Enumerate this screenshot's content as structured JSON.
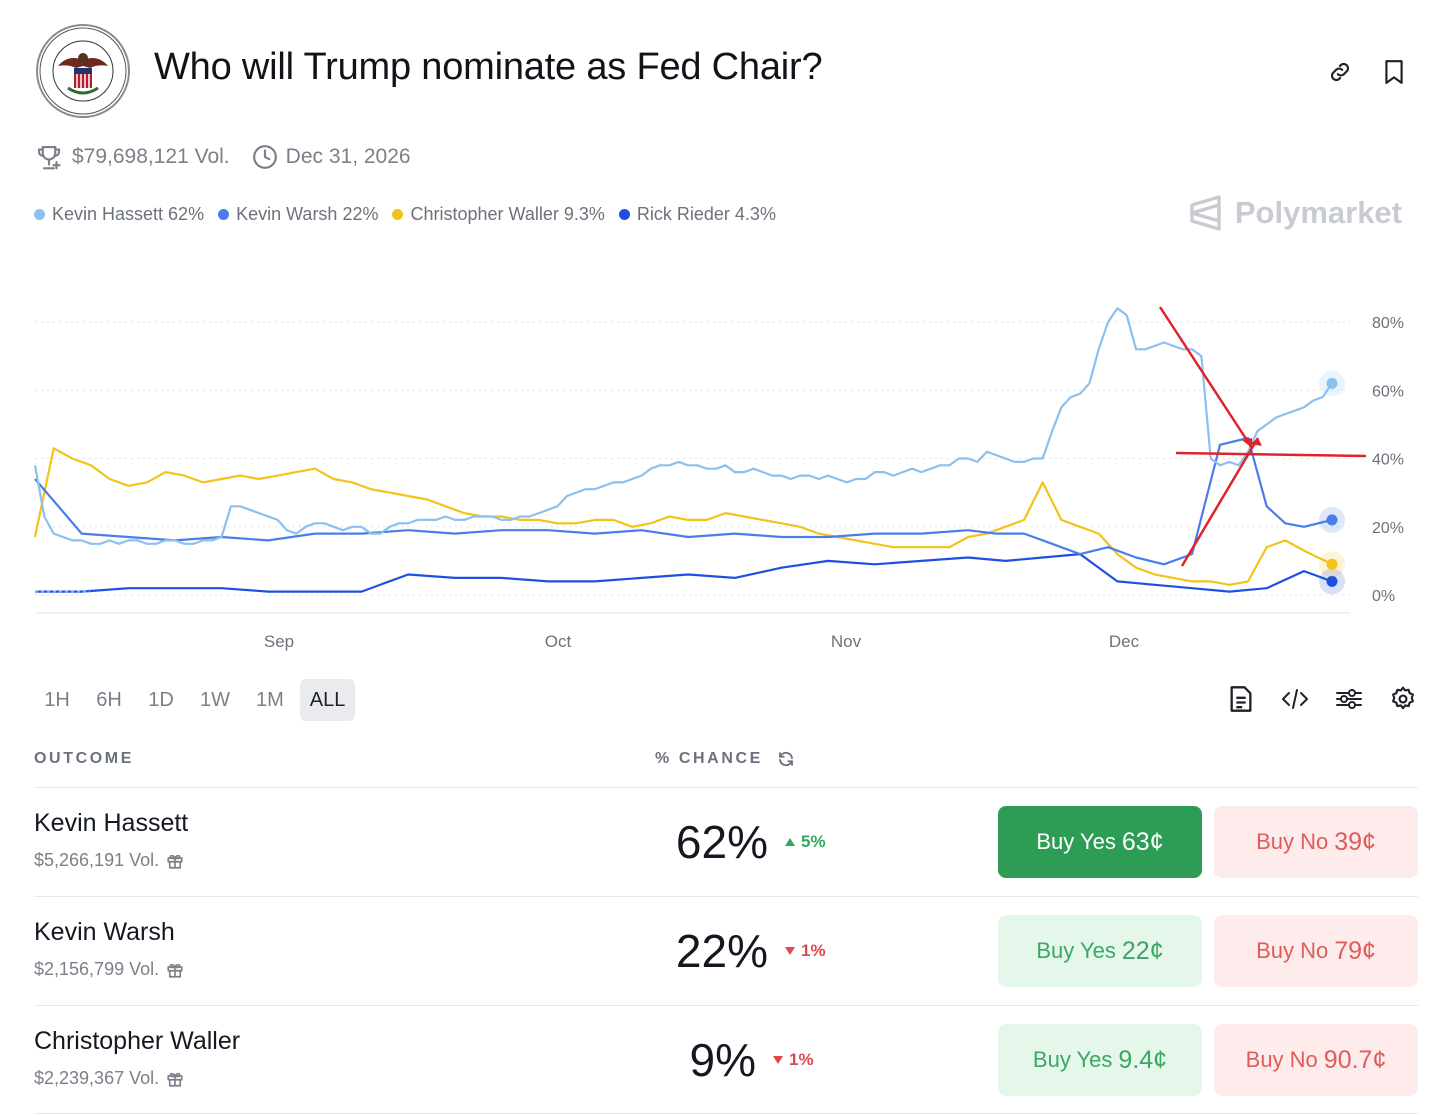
{
  "header": {
    "title": "Who will Trump nominate as Fed Chair?",
    "logo_ring_text": "BOARD OF GOVERNORS OF THE FEDERAL RESERVE SYSTEM",
    "volume": "$79,698,121 Vol.",
    "end_date": "Dec 31, 2026",
    "brand": "Polymarket"
  },
  "legend": [
    {
      "label": "Kevin Hassett 62%",
      "color": "#8cc0ef"
    },
    {
      "label": "Kevin Warsh 22%",
      "color": "#4a7de8"
    },
    {
      "label": "Christopher Waller 9.3%",
      "color": "#f2c318"
    },
    {
      "label": "Rick Rieder 4.3%",
      "color": "#1f4fe0"
    }
  ],
  "chart_data": {
    "type": "line",
    "x_ticks": [
      "Sep",
      "Oct",
      "Nov",
      "Dec"
    ],
    "y_ticks": [
      "80%",
      "60%",
      "40%",
      "20%",
      "0%"
    ],
    "ylim": [
      0,
      80
    ],
    "grid": true,
    "series": [
      {
        "name": "Kevin Hassett",
        "color": "#8cc0ef",
        "x": [
          0,
          1,
          2,
          3,
          4,
          5,
          6,
          7,
          8,
          9,
          10,
          11,
          12,
          13,
          14,
          15,
          16,
          17,
          18,
          19,
          20,
          21,
          22,
          23,
          24,
          25,
          26,
          27,
          28,
          29,
          30,
          31,
          32,
          33,
          34,
          35,
          36,
          37,
          38,
          39,
          40,
          41,
          42,
          43,
          44,
          45,
          46,
          47,
          48,
          49,
          50,
          51,
          52,
          53,
          54,
          55,
          56,
          57,
          58,
          59,
          60,
          61,
          62,
          63,
          64,
          65,
          66,
          67,
          68,
          69,
          70,
          71,
          72,
          73,
          74,
          75,
          76,
          77,
          78,
          79,
          80,
          81,
          82,
          83,
          84,
          85,
          86,
          87,
          88,
          89,
          90,
          91,
          92,
          93,
          94,
          95,
          96,
          97,
          98,
          99,
          100,
          101,
          102,
          103,
          104,
          105,
          106,
          107,
          108,
          109,
          110,
          111,
          112,
          113,
          114,
          115,
          116,
          117,
          118,
          119,
          120,
          121,
          122,
          123,
          124,
          125,
          126,
          127,
          128,
          129,
          130,
          131,
          132,
          133,
          134,
          135,
          136,
          137,
          138,
          139
        ],
        "y": [
          38,
          23,
          18,
          17,
          16,
          16,
          15,
          15,
          16,
          15,
          16,
          16,
          15,
          15,
          16,
          16,
          15,
          15,
          16,
          16,
          17,
          26,
          26,
          25,
          24,
          23,
          22,
          19,
          18,
          20,
          21,
          21,
          20,
          19,
          20,
          20,
          18,
          18,
          20,
          21,
          21,
          22,
          22,
          22,
          23,
          22,
          22,
          23,
          23,
          23,
          22,
          22,
          23,
          23,
          24,
          25,
          26,
          29,
          30,
          31,
          31,
          32,
          33,
          33,
          34,
          35,
          37,
          38,
          38,
          39,
          38,
          38,
          37,
          37,
          38,
          36,
          36,
          37,
          36,
          35,
          35,
          34,
          35,
          35,
          34,
          35,
          34,
          33,
          34,
          34,
          36,
          36,
          35,
          36,
          37,
          36,
          37,
          38,
          38,
          40,
          40,
          39,
          42,
          41,
          40,
          39,
          39,
          40,
          40,
          48,
          55,
          58,
          59,
          62,
          72,
          80,
          84,
          82,
          72,
          72,
          73,
          74,
          73,
          72,
          72,
          70,
          40,
          38,
          39,
          38,
          42,
          48,
          50,
          52,
          53,
          54,
          55,
          57,
          58,
          62
        ]
      },
      {
        "name": "Kevin Warsh",
        "color": "#4a7de8",
        "x": [
          0,
          5,
          10,
          15,
          20,
          25,
          30,
          35,
          40,
          45,
          50,
          55,
          60,
          65,
          70,
          75,
          80,
          85,
          90,
          95,
          100,
          103,
          106,
          109,
          112,
          115,
          118,
          121,
          124,
          127,
          130,
          132,
          134,
          136,
          139
        ],
        "y": [
          34,
          18,
          17,
          16,
          17,
          16,
          18,
          18,
          19,
          18,
          19,
          19,
          18,
          19,
          17,
          18,
          17,
          17,
          18,
          18,
          19,
          18,
          18,
          15,
          12,
          14,
          11,
          9,
          12,
          44,
          46,
          26,
          21,
          20,
          22
        ]
      },
      {
        "name": "Christopher Waller",
        "color": "#f2c318",
        "x": [
          0,
          2,
          4,
          6,
          8,
          10,
          12,
          14,
          16,
          18,
          20,
          22,
          24,
          26,
          28,
          30,
          32,
          34,
          36,
          38,
          40,
          42,
          44,
          46,
          48,
          50,
          52,
          54,
          56,
          58,
          60,
          62,
          64,
          66,
          68,
          70,
          72,
          74,
          76,
          78,
          80,
          82,
          84,
          86,
          88,
          90,
          92,
          94,
          96,
          98,
          100,
          102,
          104,
          106,
          108,
          110,
          112,
          114,
          116,
          118,
          120,
          122,
          124,
          126,
          128,
          130,
          132,
          134,
          136,
          139
        ],
        "y": [
          17,
          43,
          40,
          38,
          34,
          32,
          33,
          36,
          35,
          33,
          34,
          35,
          34,
          35,
          36,
          37,
          34,
          33,
          31,
          30,
          29,
          28,
          26,
          24,
          23,
          23,
          22,
          22,
          21,
          21,
          22,
          22,
          20,
          21,
          23,
          22,
          22,
          24,
          23,
          22,
          21,
          20,
          18,
          17,
          16,
          15,
          14,
          14,
          14,
          14,
          17,
          18,
          20,
          22,
          33,
          22,
          20,
          18,
          12,
          8,
          6,
          5,
          4,
          4,
          3,
          4,
          14,
          16,
          13,
          9
        ]
      },
      {
        "name": "Rick Rieder",
        "color": "#1f4fe0",
        "x": [
          0,
          5,
          10,
          15,
          20,
          25,
          30,
          35,
          40,
          45,
          50,
          55,
          60,
          65,
          70,
          75,
          80,
          85,
          90,
          95,
          100,
          104,
          108,
          112,
          116,
          120,
          124,
          128,
          132,
          136,
          139
        ],
        "y": [
          1,
          1,
          2,
          2,
          2,
          1,
          1,
          1,
          6,
          5,
          5,
          4,
          4,
          5,
          6,
          5,
          8,
          10,
          9,
          10,
          11,
          10,
          11,
          12,
          4,
          3,
          2,
          1,
          2,
          7,
          4
        ]
      }
    ]
  },
  "ranges": [
    "1H",
    "6H",
    "1D",
    "1W",
    "1M",
    "ALL"
  ],
  "active_range": "ALL",
  "table": {
    "col_outcome": "OUTCOME",
    "col_chance": "% CHANCE",
    "rows": [
      {
        "name": "Kevin Hassett",
        "volume": "$5,266,191 Vol.",
        "chance": "62%",
        "change": "5%",
        "dir": "up",
        "yes_label": "Buy Yes",
        "yes_price": "63¢",
        "no_label": "Buy No",
        "no_price": "39¢"
      },
      {
        "name": "Kevin Warsh",
        "volume": "$2,156,799 Vol.",
        "chance": "22%",
        "change": "1%",
        "dir": "down",
        "yes_label": "Buy Yes",
        "yes_price": "22¢",
        "no_label": "Buy No",
        "no_price": "79¢"
      },
      {
        "name": "Christopher Waller",
        "volume": "$2,239,367 Vol.",
        "chance": "9%",
        "change": "1%",
        "dir": "down",
        "yes_label": "Buy Yes",
        "yes_price": "9.4¢",
        "no_label": "Buy No",
        "no_price": "90.7¢"
      }
    ]
  }
}
